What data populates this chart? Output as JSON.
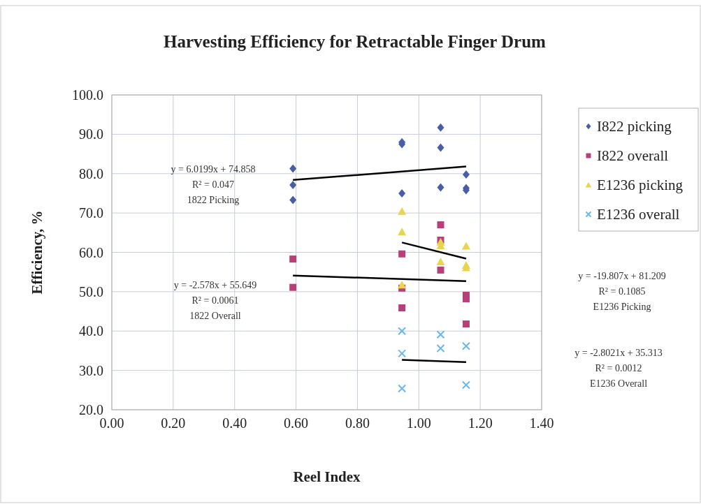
{
  "chart_data": {
    "type": "scatter",
    "title": "Harvesting Efficiency for Retractable Finger Drum",
    "xlabel": "Reel Index",
    "ylabel": "Efficiency, %",
    "xlim": [
      0,
      1.4
    ],
    "ylim": [
      20,
      100
    ],
    "xticks": [
      {
        "value": 0,
        "label": "0.00"
      },
      {
        "value": 0.2,
        "label": "0.20"
      },
      {
        "value": 0.4,
        "label": "0.40"
      },
      {
        "value": 0.6,
        "label": "0.60"
      },
      {
        "value": 0.8,
        "label": "0.80"
      },
      {
        "value": 1,
        "label": "1.00"
      },
      {
        "value": 1.2,
        "label": "1.20"
      },
      {
        "value": 1.4,
        "label": "1.40"
      }
    ],
    "yticks": [
      {
        "value": 20,
        "label": "20.0"
      },
      {
        "value": 30,
        "label": "30.0"
      },
      {
        "value": 40,
        "label": "40.0"
      },
      {
        "value": 50,
        "label": "50.0"
      },
      {
        "value": 60,
        "label": "60.0"
      },
      {
        "value": 70,
        "label": "70.0"
      },
      {
        "value": 80,
        "label": "80.0"
      },
      {
        "value": 90,
        "label": "90.0"
      },
      {
        "value": 100,
        "label": "100.0"
      }
    ],
    "grid": true,
    "legend": "top right",
    "series": [
      {
        "name": "I822 picking",
        "color": "#4a5ea8",
        "marker": "diamond",
        "x": [
          0.59,
          0.59,
          0.59,
          0.945,
          0.945,
          0.945,
          1.071,
          1.071,
          1.071,
          1.154,
          1.154,
          1.154
        ],
        "values": [
          81.3,
          77.1,
          73.3,
          88.0,
          87.5,
          75.0,
          91.7,
          86.6,
          76.5,
          79.8,
          76.3,
          75.8
        ]
      },
      {
        "name": "I822 overall",
        "color": "#b8407a",
        "marker": "square",
        "x": [
          0.59,
          0.59,
          0.945,
          0.945,
          0.945,
          1.071,
          1.071,
          1.071,
          1.154,
          1.154,
          1.154
        ],
        "values": [
          58.3,
          51.1,
          59.6,
          50.9,
          45.9,
          67.0,
          63.1,
          55.5,
          49.1,
          48.2,
          41.8
        ]
      },
      {
        "name": "E1236 picking",
        "color": "#e8d44d",
        "marker": "triangle",
        "x": [
          0.945,
          0.945,
          0.945,
          1.071,
          1.071,
          1.071,
          1.154,
          1.154,
          1.154
        ],
        "values": [
          70.4,
          65.2,
          51.7,
          62.6,
          61.7,
          57.6,
          61.6,
          56.7,
          56.1
        ]
      },
      {
        "name": "E1236 overall",
        "color": "#6ab8e8",
        "marker": "cross",
        "x": [
          0.945,
          0.945,
          0.945,
          1.071,
          1.071,
          1.154,
          1.154
        ],
        "values": [
          40.0,
          34.3,
          25.4,
          39.1,
          35.6,
          36.2,
          26.3
        ]
      },
      {
        "type": "line",
        "color": "#000000",
        "x": [
          0.59,
          1.154
        ],
        "values": [
          78.4,
          81.8
        ]
      },
      {
        "type": "line",
        "color": "#000000",
        "x": [
          0.59,
          1.154
        ],
        "values": [
          54.1,
          52.7
        ]
      },
      {
        "type": "line",
        "color": "#000000",
        "x": [
          0.945,
          1.154
        ],
        "values": [
          62.5,
          58.4
        ]
      },
      {
        "type": "line",
        "color": "#000000",
        "x": [
          0.945,
          1.154
        ],
        "values": [
          32.7,
          32.1
        ]
      }
    ],
    "annotations": [
      "y = 6.0199x + 74.858\nR² = 0.047\n1822 Picking",
      "y = -2.578x + 55.649\nR² = 0.0061\n1822 Overall",
      "y = -19.807x + 81.209\nR² = 0.1085\nE1236 Picking",
      "y = -2.8021x + 35.313\nR² = 0.0012\nE1236 Overall"
    ]
  }
}
